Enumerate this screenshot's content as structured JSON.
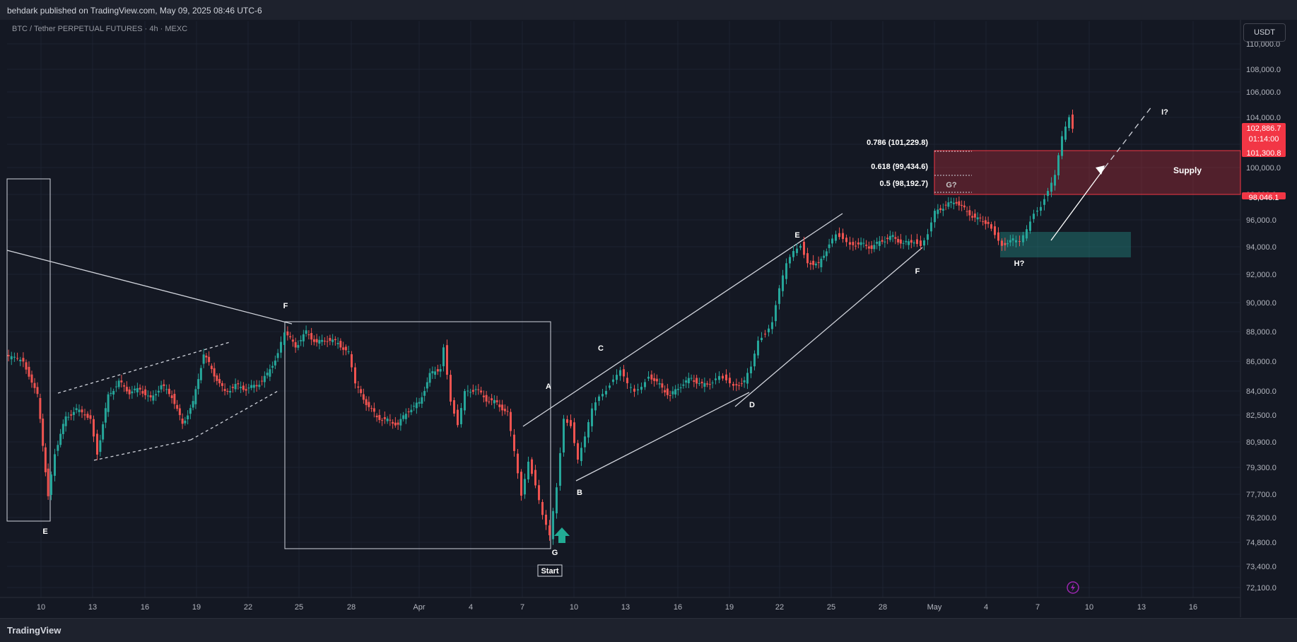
{
  "header": {
    "published": "behdark published on TradingView.com, May 09, 2025 08:46 UTC-6"
  },
  "symbol_label": "BTC / Tether PERPETUAL FUTURES · 4h · MEXC",
  "currency": "USDT",
  "footer": {
    "brand": "TradingView"
  },
  "chart_data": {
    "type": "candlestick",
    "x_ticks": [
      "10",
      "13",
      "16",
      "19",
      "22",
      "25",
      "28",
      "Apr",
      "4",
      "7",
      "10",
      "13",
      "16",
      "19",
      "22",
      "25",
      "28",
      "May",
      "4",
      "7",
      "10",
      "13",
      "16"
    ],
    "y_ticks": [
      "110,000.0",
      "108,000.0",
      "106,000.0",
      "104,000.0",
      "102,000.0",
      "100,000.0",
      "98,000.0",
      "96,000.0",
      "94,000.0",
      "92,000.0",
      "90,000.0",
      "88,000.0",
      "86,000.0",
      "84,000.0",
      "82,500.0",
      "80,900.0",
      "79,300.0",
      "77,700.0",
      "76,200.0",
      "74,800.0",
      "73,400.0",
      "72,100.0"
    ],
    "price_tags": [
      {
        "label": "102,886.7",
        "sub": "01:14:00",
        "color": "#f23645"
      },
      {
        "label": "101,300.8",
        "color": "#f23645"
      },
      {
        "label": "98,046.1",
        "color": "#f23645"
      }
    ],
    "fib_levels": [
      {
        "label": "0.786 (101,229.8)"
      },
      {
        "label": "0.618 (99,434.6)"
      },
      {
        "label": "0.5 (98,192.7)"
      }
    ],
    "zones": [
      {
        "label": "Supply",
        "color": "#f23645"
      },
      {
        "label": "",
        "color": "#26a69a"
      }
    ],
    "wave_labels": [
      "E",
      "F",
      "G",
      "A",
      "B",
      "C",
      "D",
      "E",
      "F",
      "G?",
      "H?",
      "I?"
    ],
    "start_label": "Start",
    "colors": {
      "up": "#26a69a",
      "down": "#ef5350",
      "grid": "#1f2330"
    }
  }
}
